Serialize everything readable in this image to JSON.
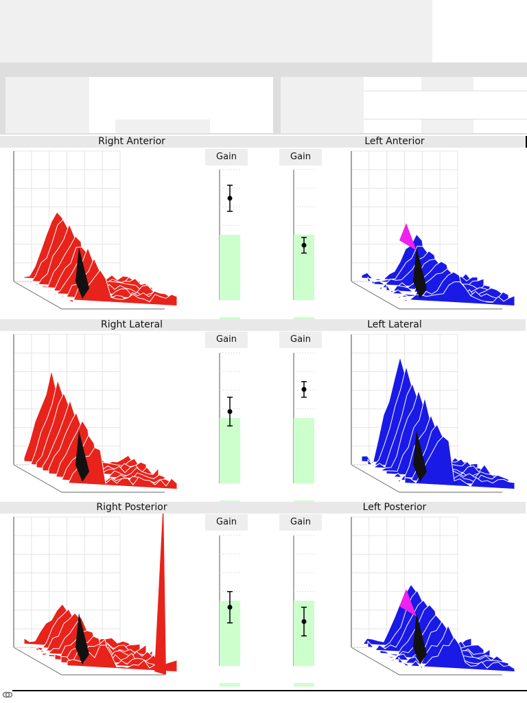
{
  "sections": [
    {
      "id": "anterior",
      "right_title": "Right Anterior",
      "left_title": "Left Anterior",
      "right_gain_label": "Gain",
      "left_gain_label": "Gain",
      "right_gain_value": 0.78,
      "right_gain_low": 0.68,
      "right_gain_high": 0.88,
      "left_gain_value": 0.42,
      "left_gain_low": 0.36,
      "left_gain_high": 0.48
    },
    {
      "id": "lateral",
      "right_title": "Right Lateral",
      "left_title": "Left Lateral",
      "right_gain_label": "Gain",
      "left_gain_label": "Gain",
      "right_gain_value": 0.55,
      "right_gain_low": 0.44,
      "right_gain_high": 0.66,
      "left_gain_value": 0.72,
      "left_gain_low": 0.66,
      "left_gain_high": 0.78
    },
    {
      "id": "posterior",
      "right_title": "Right Posterior",
      "left_title": "Left Posterior",
      "right_gain_label": "Gain",
      "left_gain_label": "Gain",
      "right_gain_value": 0.45,
      "right_gain_low": 0.33,
      "right_gain_high": 0.57,
      "left_gain_value": 0.34,
      "left_gain_low": 0.23,
      "left_gain_high": 0.45
    }
  ],
  "colors": {
    "right_surface": "#e8231b",
    "left_surface": "#1a1ae6",
    "left_highlight": "#ee22ee",
    "normal_band": "#ccffcc",
    "shadow": "#111111"
  },
  "icons": [
    "chain-link-icon"
  ]
}
